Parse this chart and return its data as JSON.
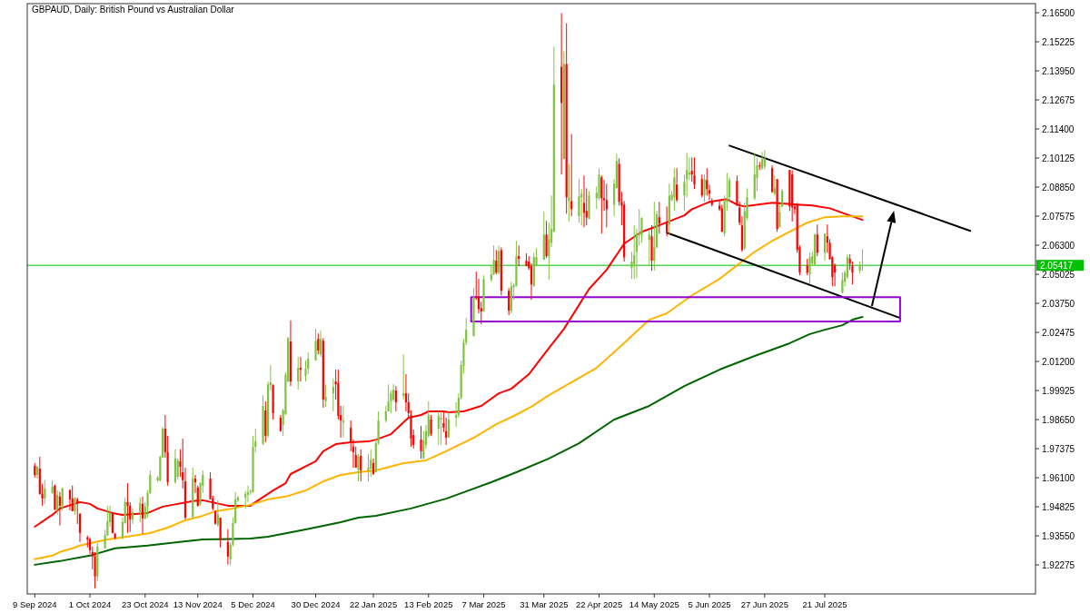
{
  "chart_data": {
    "type": "candlestick",
    "title": "GBPAUD, Daily: British Pound vs Australian Dollar",
    "x": [
      "2024-09-09",
      "2024-09-10",
      "2024-09-11",
      "2024-09-12",
      "2024-09-13",
      "2024-09-16",
      "2024-09-17",
      "2024-09-18",
      "2024-09-19",
      "2024-09-20",
      "2024-09-23",
      "2024-09-24",
      "2024-09-25",
      "2024-09-26",
      "2024-09-27",
      "2024-09-30",
      "2024-10-01",
      "2024-10-02",
      "2024-10-03",
      "2024-10-04",
      "2024-10-07",
      "2024-10-08",
      "2024-10-09",
      "2024-10-10",
      "2024-10-11",
      "2024-10-14",
      "2024-10-15",
      "2024-10-16",
      "2024-10-17",
      "2024-10-18",
      "2024-10-21",
      "2024-10-22",
      "2024-10-23",
      "2024-10-24",
      "2024-10-25",
      "2024-10-28",
      "2024-10-29",
      "2024-10-30",
      "2024-10-31",
      "2024-11-01",
      "2024-11-04",
      "2024-11-05",
      "2024-11-06",
      "2024-11-07",
      "2024-11-08",
      "2024-11-11",
      "2024-11-12",
      "2024-11-13",
      "2024-11-14",
      "2024-11-15",
      "2024-11-18",
      "2024-11-19",
      "2024-11-20",
      "2024-11-21",
      "2024-11-22",
      "2024-11-25",
      "2024-11-26",
      "2024-11-27",
      "2024-11-28",
      "2024-11-29",
      "2024-12-02",
      "2024-12-03",
      "2024-12-04",
      "2024-12-05",
      "2024-12-06",
      "2024-12-09",
      "2024-12-10",
      "2024-12-11",
      "2024-12-12",
      "2024-12-13",
      "2024-12-16",
      "2024-12-17",
      "2024-12-18",
      "2024-12-19",
      "2024-12-20",
      "2024-12-23",
      "2024-12-24",
      "2024-12-26",
      "2024-12-27",
      "2024-12-30",
      "2024-12-31",
      "2025-01-01",
      "2025-01-02",
      "2025-01-03",
      "2025-01-06",
      "2025-01-07",
      "2025-01-08",
      "2025-01-09",
      "2025-01-10",
      "2025-01-13",
      "2025-01-14",
      "2025-01-15",
      "2025-01-16",
      "2025-01-17",
      "2025-01-20",
      "2025-01-21",
      "2025-01-22",
      "2025-01-23",
      "2025-01-24",
      "2025-01-27",
      "2025-01-28",
      "2025-01-29",
      "2025-01-30",
      "2025-01-31",
      "2025-02-03",
      "2025-02-04",
      "2025-02-05",
      "2025-02-06",
      "2025-02-07",
      "2025-02-10",
      "2025-02-11",
      "2025-02-12",
      "2025-02-13",
      "2025-02-14",
      "2025-02-17",
      "2025-02-18",
      "2025-02-19",
      "2025-02-20",
      "2025-02-21",
      "2025-02-24",
      "2025-02-25",
      "2025-02-26",
      "2025-02-27",
      "2025-02-28",
      "2025-03-03",
      "2025-03-04",
      "2025-03-05",
      "2025-03-06",
      "2025-03-07",
      "2025-03-10",
      "2025-03-11",
      "2025-03-12",
      "2025-03-13",
      "2025-03-14",
      "2025-03-17",
      "2025-03-18",
      "2025-03-19",
      "2025-03-20",
      "2025-03-21",
      "2025-03-24",
      "2025-03-25",
      "2025-03-26",
      "2025-03-27",
      "2025-03-28",
      "2025-03-31",
      "2025-04-01",
      "2025-04-02",
      "2025-04-03",
      "2025-04-04",
      "2025-04-07",
      "2025-04-08",
      "2025-04-09",
      "2025-04-10",
      "2025-04-11",
      "2025-04-14",
      "2025-04-15",
      "2025-04-16",
      "2025-04-17",
      "2025-04-18",
      "2025-04-21",
      "2025-04-22",
      "2025-04-23",
      "2025-04-24",
      "2025-04-25",
      "2025-04-28",
      "2025-04-29",
      "2025-04-30",
      "2025-05-01",
      "2025-05-02",
      "2025-05-05",
      "2025-05-06",
      "2025-05-07",
      "2025-05-08",
      "2025-05-09",
      "2025-05-12",
      "2025-05-13",
      "2025-05-14",
      "2025-05-15",
      "2025-05-16",
      "2025-05-19",
      "2025-05-20",
      "2025-05-21",
      "2025-05-22",
      "2025-05-23",
      "2025-05-26",
      "2025-05-27",
      "2025-05-28",
      "2025-05-29",
      "2025-05-30",
      "2025-06-02",
      "2025-06-03",
      "2025-06-04",
      "2025-06-05",
      "2025-06-06",
      "2025-06-09",
      "2025-06-10",
      "2025-06-11",
      "2025-06-12",
      "2025-06-13",
      "2025-06-16",
      "2025-06-17",
      "2025-06-18",
      "2025-06-19",
      "2025-06-20",
      "2025-06-23",
      "2025-06-24",
      "2025-06-25",
      "2025-06-26",
      "2025-06-27",
      "2025-06-30",
      "2025-07-01",
      "2025-07-02",
      "2025-07-03",
      "2025-07-04",
      "2025-07-07",
      "2025-07-08",
      "2025-07-09",
      "2025-07-10",
      "2025-07-11",
      "2025-07-14",
      "2025-07-15",
      "2025-07-16",
      "2025-07-17",
      "2025-07-18",
      "2025-07-21",
      "2025-07-22",
      "2025-07-23",
      "2025-07-24",
      "2025-07-25",
      "2025-07-28",
      "2025-07-29",
      "2025-07-30",
      "2025-07-31",
      "2025-08-01",
      "2025-08-04",
      "2025-08-05"
    ],
    "ohlc": [
      [
        1.9662,
        1.9674,
        1.961,
        1.9622
      ],
      [
        1.9622,
        1.9662,
        1.9606,
        1.9658
      ],
      [
        1.965,
        1.9702,
        1.9535,
        1.9539
      ],
      [
        1.9539,
        1.9583,
        1.9487,
        1.9519
      ],
      [
        1.9519,
        1.9598,
        1.9495,
        1.9563
      ],
      [
        1.9543,
        1.9598,
        1.9539,
        1.9571
      ],
      [
        1.9575,
        1.958,
        1.9467,
        1.9471
      ],
      [
        1.9471,
        1.9555,
        1.9447,
        1.9535
      ],
      [
        1.9527,
        1.9547,
        1.94,
        1.9487
      ],
      [
        1.9487,
        1.9567,
        1.9467,
        1.9563
      ],
      [
        1.9555,
        1.9559,
        1.9467,
        1.9515
      ],
      [
        1.9519,
        1.9575,
        1.9463,
        1.9463
      ],
      [
        1.9463,
        1.9523,
        1.9447,
        1.9523
      ],
      [
        1.9515,
        1.9523,
        1.9407,
        1.9495
      ],
      [
        1.9451,
        1.9455,
        1.9328,
        1.9368
      ],
      [
        1.9348,
        1.9356,
        1.9304,
        1.934
      ],
      [
        1.934,
        1.9348,
        1.9276,
        1.9292
      ],
      [
        1.9284,
        1.9308,
        1.9208,
        1.9264
      ],
      [
        1.9264,
        1.9284,
        1.9125,
        1.9177
      ],
      [
        1.9177,
        1.9324,
        1.9157,
        1.9308
      ],
      [
        1.93,
        1.9382,
        1.93,
        1.9358
      ],
      [
        1.9356,
        1.9487,
        1.9356,
        1.9419
      ],
      [
        1.9415,
        1.9487,
        1.9395,
        1.9455
      ],
      [
        1.9455,
        1.9459,
        1.9364,
        1.9368
      ],
      [
        1.9364,
        1.9368,
        1.934,
        1.9346
      ],
      [
        1.9346,
        1.9435,
        1.934,
        1.9415
      ],
      [
        1.9411,
        1.9523,
        1.9407,
        1.9503
      ],
      [
        1.9503,
        1.9586,
        1.9368,
        1.9487
      ],
      [
        1.9487,
        1.9503,
        1.9372,
        1.9427
      ],
      [
        1.9427,
        1.9475,
        1.9407,
        1.9459
      ],
      [
        1.9459,
        1.9523,
        1.9415,
        1.9499
      ],
      [
        1.9495,
        1.9527,
        1.9364,
        1.9431
      ],
      [
        1.9431,
        1.9503,
        1.9427,
        1.9483
      ],
      [
        1.9483,
        1.9555,
        1.9435,
        1.9543
      ],
      [
        1.9543,
        1.9642,
        1.9539,
        1.9622
      ],
      [
        1.9598,
        1.9618,
        1.959,
        1.961
      ],
      [
        1.9598,
        1.9706,
        1.9594,
        1.9702
      ],
      [
        1.9698,
        1.9833,
        1.9698,
        1.9825
      ],
      [
        1.9825,
        1.9885,
        1.9698,
        1.9722
      ],
      [
        1.9722,
        1.9793,
        1.9575,
        1.9591
      ],
      [
        1.9591,
        1.9734,
        1.9583,
        1.9694
      ],
      [
        1.9614,
        1.9694,
        1.9602,
        1.9686
      ],
      [
        1.9682,
        1.9734,
        1.9614,
        1.9658
      ],
      [
        1.9634,
        1.9781,
        1.9563,
        1.9599
      ],
      [
        1.9594,
        1.9654,
        1.9427,
        1.9435
      ],
      [
        1.9439,
        1.9654,
        1.9431,
        1.9606
      ],
      [
        1.9606,
        1.9622,
        1.9543,
        1.959
      ],
      [
        1.9567,
        1.9575,
        1.9483,
        1.9487
      ],
      [
        1.9495,
        1.959,
        1.9487,
        1.9587
      ],
      [
        1.9575,
        1.9642,
        1.9543,
        1.9622
      ],
      [
        1.9606,
        1.9634,
        1.9515,
        1.9515
      ],
      [
        1.9519,
        1.9531,
        1.9467,
        1.9475
      ],
      [
        1.9463,
        1.9467,
        1.9404,
        1.9408
      ],
      [
        1.9404,
        1.9511,
        1.9395,
        1.9448
      ],
      [
        1.9435,
        1.9435,
        1.9304,
        1.9336
      ],
      [
        1.9328,
        1.9384,
        1.9229,
        1.9264
      ],
      [
        1.9252,
        1.9328,
        1.9225,
        1.9316
      ],
      [
        1.9316,
        1.9435,
        1.9308,
        1.9411
      ],
      [
        1.9411,
        1.9547,
        1.9407,
        1.9515
      ],
      [
        1.9511,
        1.9531,
        1.9503,
        1.9523
      ],
      [
        1.9523,
        1.9551,
        1.9475,
        1.9539
      ],
      [
        1.9535,
        1.9575,
        1.9503,
        1.9547
      ],
      [
        1.9547,
        1.9559,
        1.9535,
        1.9552
      ],
      [
        1.9547,
        1.9793,
        1.9543,
        1.9746
      ],
      [
        1.9746,
        1.9825,
        1.9722,
        1.977
      ],
      [
        1.9758,
        1.9972,
        1.9754,
        1.9925
      ],
      [
        1.9905,
        1.9945,
        1.9766,
        1.9794
      ],
      [
        1.9794,
        2.0032,
        1.9786,
        2.002
      ],
      [
        2.0016,
        2.0104,
        1.9992,
        2.0028
      ],
      [
        2.0016,
        2.002,
        1.9865,
        1.9893
      ],
      [
        1.9873,
        1.9885,
        1.9814,
        1.9814
      ],
      [
        1.9841,
        1.9913,
        1.9793,
        1.9905
      ],
      [
        1.9889,
        2.0072,
        1.9885,
        2.006
      ],
      [
        2.0032,
        2.0227,
        2.0028,
        2.0223
      ],
      [
        2.0207,
        2.03,
        2.0012,
        2.0032
      ],
      [
        2.0032,
        2.014,
        1.9996,
        2.0092
      ],
      [
        2.0092,
        2.014,
        2.0032,
        2.0084
      ],
      [
        2.0056,
        2.0124,
        2.0032,
        2.0088
      ],
      [
        2.0088,
        2.0159,
        2.0064,
        2.0132
      ],
      [
        2.0124,
        2.0263,
        2.0124,
        2.0211
      ],
      [
        2.0219,
        2.0243,
        2.0151,
        2.0168
      ],
      [
        2.0151,
        2.0255,
        2.014,
        2.0219
      ],
      [
        2.0211,
        2.0223,
        1.9917,
        1.9953
      ],
      [
        1.9945,
        2.002,
        1.9921,
        1.9965
      ],
      [
        1.998,
        2.0044,
        1.9901,
        2.0008
      ],
      [
        2.0032,
        2.0084,
        1.9953,
        2.002
      ],
      [
        2.0024,
        2.0084,
        1.9865,
        1.9881
      ],
      [
        1.9885,
        1.9925,
        1.9786,
        1.9861
      ],
      [
        1.9853,
        1.9925,
        1.9786,
        1.9861
      ],
      [
        1.9829,
        1.9861,
        1.9726,
        1.9766
      ],
      [
        1.9746,
        1.9778,
        1.9654,
        1.9722
      ],
      [
        1.971,
        1.9746,
        1.9654,
        1.9654
      ],
      [
        1.9646,
        1.9714,
        1.9594,
        1.9702
      ],
      [
        1.9706,
        1.9734,
        1.9594,
        1.9642
      ],
      [
        1.9642,
        1.9714,
        1.9594,
        1.9654
      ],
      [
        1.965,
        1.9734,
        1.9614,
        1.969
      ],
      [
        1.9674,
        1.9694,
        1.9622,
        1.9626
      ],
      [
        1.9634,
        1.9782,
        1.9634,
        1.9762
      ],
      [
        1.9762,
        1.9901,
        1.9754,
        1.9861
      ],
      [
        1.9861,
        1.9925,
        1.9853,
        1.9901
      ],
      [
        1.9901,
        2.002,
        1.9901,
        1.9945
      ],
      [
        1.9945,
        1.9992,
        1.9893,
        1.998
      ],
      [
        1.9953,
        2.002,
        1.9945,
        1.9996
      ],
      [
        1.9992,
        2.0012,
        1.9901,
        1.9941
      ],
      [
        1.9969,
        2.0151,
        1.9953,
        1.998
      ],
      [
        1.998,
        2.0064,
        1.9901,
        1.9941
      ],
      [
        1.9941,
        1.998,
        1.9873,
        1.9893
      ],
      [
        1.9885,
        1.9905,
        1.9746,
        1.9782
      ],
      [
        1.9797,
        1.9821,
        1.9738,
        1.9754
      ],
      [
        1.9778,
        1.9837,
        1.9694,
        1.9726
      ],
      [
        1.9694,
        1.9814,
        1.9694,
        1.9774
      ],
      [
        1.9754,
        1.9841,
        1.9738,
        1.9814
      ],
      [
        1.9793,
        1.9945,
        1.9786,
        1.9885
      ],
      [
        1.9865,
        1.9885,
        1.9793,
        1.9802
      ],
      [
        1.9825,
        1.9901,
        1.9754,
        1.9881
      ],
      [
        1.9865,
        1.9901,
        1.9754,
        1.9873
      ],
      [
        1.9849,
        1.9901,
        1.981,
        1.983
      ],
      [
        1.9814,
        1.9873,
        1.9754,
        1.9786
      ],
      [
        1.9786,
        1.9901,
        1.9786,
        1.9865
      ],
      [
        1.9873,
        1.9941,
        1.9833,
        1.9885
      ],
      [
        1.9885,
        1.998,
        1.9873,
        1.9961
      ],
      [
        1.9961,
        2.0124,
        1.9953,
        2.0104
      ],
      [
        2.01,
        2.0219,
        2.0068,
        2.0203
      ],
      [
        2.0203,
        2.0311,
        2.0191,
        2.0259
      ],
      [
        2.0231,
        2.0442,
        2.0231,
        2.0402
      ],
      [
        2.0406,
        2.0514,
        2.039,
        2.0398
      ],
      [
        2.0402,
        2.0482,
        2.0331,
        2.035
      ],
      [
        2.0354,
        2.0382,
        2.0283,
        2.0339
      ],
      [
        2.0339,
        2.0498,
        2.0339,
        2.0482
      ],
      [
        2.0478,
        2.0542,
        2.047,
        2.0502
      ],
      [
        2.0502,
        2.0629,
        2.0498,
        2.0566
      ],
      [
        2.0562,
        2.0609,
        2.0502,
        2.051
      ],
      [
        2.051,
        2.0629,
        2.0502,
        2.0605
      ],
      [
        2.0609,
        2.0621,
        2.041,
        2.043
      ],
      [
        2.043,
        2.0442,
        2.0323,
        2.0343
      ],
      [
        2.0343,
        2.047,
        2.0331,
        2.045
      ],
      [
        2.0446,
        2.0462,
        2.039,
        2.0454
      ],
      [
        2.045,
        2.0649,
        2.045,
        2.0582
      ],
      [
        2.0582,
        2.0629,
        2.0538,
        2.057
      ],
      [
        2.0562,
        2.0594,
        2.0538,
        2.0538
      ],
      [
        2.0558,
        2.0582,
        2.0522,
        2.053
      ],
      [
        2.0538,
        2.055,
        2.039,
        2.0458
      ],
      [
        2.045,
        2.0597,
        2.045,
        2.0578
      ],
      [
        2.0538,
        2.0617,
        2.0538,
        2.0578
      ],
      [
        2.0566,
        2.0776,
        2.0566,
        2.0677
      ],
      [
        2.0677,
        2.0737,
        2.0574,
        2.0582
      ],
      [
        2.0582,
        2.0729,
        2.0478,
        2.0657
      ],
      [
        2.0641,
        2.0848,
        2.0621,
        2.0701
      ],
      [
        2.0689,
        2.1501,
        2.0689,
        2.1334
      ],
      [
        2.1413,
        2.1648,
        2.094,
        2.1254
      ],
      [
        2.1008,
        2.1481,
        2.1008,
        2.1425
      ],
      [
        2.1425,
        2.1604,
        2.0768,
        2.084
      ],
      [
        2.0824,
        2.0987,
        2.0733,
        2.084
      ],
      [
        2.0824,
        2.1119,
        2.0757,
        2.0788
      ],
      [
        2.0757,
        2.092,
        2.0729,
        2.0844
      ],
      [
        2.084,
        2.0876,
        2.0717,
        2.0856
      ],
      [
        2.0816,
        2.0936,
        2.0709,
        2.0772
      ],
      [
        2.078,
        2.088,
        2.0717,
        2.0752
      ],
      [
        2.0745,
        2.0868,
        2.0745,
        2.0848
      ],
      [
        2.0836,
        2.0888,
        2.0788,
        2.086
      ],
      [
        2.0836,
        2.0968,
        2.0828,
        2.094
      ],
      [
        2.0928,
        2.0936,
        2.0681,
        2.0836
      ],
      [
        2.0836,
        2.0916,
        2.078,
        2.0828
      ],
      [
        2.0828,
        2.09,
        2.0709,
        2.0788
      ],
      [
        2.0808,
        2.092,
        2.0757,
        2.09
      ],
      [
        2.088,
        2.1031,
        2.088,
        2.1
      ],
      [
        2.0987,
        2.1011,
        2.0804,
        2.082
      ],
      [
        2.082,
        2.0864,
        2.0717,
        2.0804
      ],
      [
        2.0808,
        2.0824,
        2.0558,
        2.0577
      ],
      [
        2.053,
        2.0601,
        2.0482,
        2.0558
      ],
      [
        2.0546,
        2.0717,
        2.0482,
        2.0586
      ],
      [
        2.0601,
        2.0701,
        2.0486,
        2.0681
      ],
      [
        2.0673,
        2.0788,
        2.0629,
        2.0685
      ],
      [
        2.0677,
        2.0753,
        2.0641,
        2.0749
      ],
      [
        2.0653,
        2.0693,
        2.0538,
        2.0677
      ],
      [
        2.0669,
        2.0717,
        2.0518,
        2.0562
      ],
      [
        2.0562,
        2.082,
        2.0518,
        2.0621
      ],
      [
        2.0621,
        2.0781,
        2.0617,
        2.0765
      ],
      [
        2.0753,
        2.082,
        2.0681,
        2.0725
      ],
      [
        2.0729,
        2.08,
        2.0669,
        2.0689
      ],
      [
        2.0721,
        2.09,
        2.0677,
        2.0848
      ],
      [
        2.0828,
        2.0868,
        2.0824,
        2.0852
      ],
      [
        2.084,
        2.0968,
        2.0781,
        2.0928
      ],
      [
        2.0896,
        2.0968,
        2.082,
        2.0828
      ],
      [
        2.0848,
        2.094,
        2.0781,
        2.0908
      ],
      [
        2.092,
        2.1035,
        2.084,
        2.096
      ],
      [
        2.094,
        2.1015,
        2.0916,
        2.095
      ],
      [
        2.0956,
        2.1015,
        2.0908,
        2.094
      ],
      [
        2.0936,
        2.1015,
        2.0876,
        2.0896
      ],
      [
        2.092,
        2.094,
        2.084,
        2.0848
      ],
      [
        2.0848,
        2.094,
        2.082,
        2.092
      ],
      [
        2.0916,
        2.0968,
        2.0848,
        2.0876
      ],
      [
        2.0872,
        2.0896,
        2.0828,
        2.0856
      ],
      [
        2.0824,
        2.0836,
        2.08,
        2.0808
      ],
      [
        2.0804,
        2.0824,
        2.078,
        2.0788
      ],
      [
        2.0792,
        2.0808,
        2.0689,
        2.0689
      ],
      [
        2.0681,
        2.0848,
        2.0669,
        2.0828
      ],
      [
        2.082,
        2.0948,
        2.078,
        2.0832
      ],
      [
        2.084,
        2.0928,
        2.082,
        2.0916
      ],
      [
        2.0912,
        2.0936,
        2.0804,
        2.0804
      ],
      [
        2.0796,
        2.082,
        2.0717,
        2.0729
      ],
      [
        2.0717,
        2.0757,
        2.0601,
        2.0609
      ],
      [
        2.0617,
        2.0816,
        2.0609,
        2.078
      ],
      [
        2.0749,
        2.088,
        2.0741,
        2.084
      ],
      [
        2.0836,
        2.1035,
        2.0828,
        2.094
      ],
      [
        2.0924,
        2.1015,
        2.0868,
        2.098
      ],
      [
        2.098,
        2.0996,
        2.096,
        2.0976
      ],
      [
        2.0968,
        2.1039,
        2.096,
        2.1007
      ],
      [
        2.0976,
        2.1047,
        2.0964,
        2.1011
      ],
      [
        2.0968,
        2.098,
        2.086,
        2.0864
      ],
      [
        2.0856,
        2.0936,
        2.0848,
        2.088
      ],
      [
        2.092,
        2.092,
        2.0689,
        2.0701
      ],
      [
        2.0709,
        2.0808,
        2.0709,
        2.0776
      ],
      [
        2.08,
        2.0876,
        2.0796,
        2.0868
      ],
      [
        2.096,
        2.096,
        2.078,
        2.08
      ],
      [
        2.094,
        2.096,
        2.0733,
        2.0796
      ],
      [
        2.08,
        2.0808,
        2.0768,
        2.0788
      ],
      [
        2.0808,
        2.0816,
        2.0597,
        2.0609
      ],
      [
        2.0621,
        2.0629,
        2.0498,
        2.051
      ],
      [
        2.0542,
        2.057,
        2.0498,
        2.051
      ],
      [
        2.0502,
        2.0597,
        2.0458,
        2.0577
      ],
      [
        2.055,
        2.0601,
        2.0538,
        2.0582
      ],
      [
        2.0546,
        2.0681,
        2.0538,
        2.0677
      ],
      [
        2.0677,
        2.0721,
        2.0582,
        2.0597
      ],
      [
        2.0597,
        2.0681,
        2.0562,
        2.0681
      ],
      [
        2.0669,
        2.0721,
        2.0597,
        2.0641
      ],
      [
        2.0641,
        2.0657,
        2.0566,
        2.0569
      ],
      [
        2.0577,
        2.0582,
        2.045,
        2.049
      ],
      [
        2.0542,
        2.055,
        2.045,
        2.051
      ],
      [
        2.0422,
        2.051,
        2.0418,
        2.0478
      ],
      [
        2.047,
        2.0518,
        2.045,
        2.051
      ],
      [
        2.049,
        2.059,
        2.0482,
        2.0577
      ],
      [
        2.057,
        2.059,
        2.0522,
        2.0549
      ],
      [
        2.0538,
        2.0558,
        2.0458,
        2.051
      ],
      [
        2.0518,
        2.0558,
        2.0506,
        2.0538
      ],
      [
        2.0538,
        2.0613,
        2.0518,
        2.0542
      ]
    ],
    "colors": [
      "#ff0000",
      "#80c342",
      "#ff0000",
      "#ff0000",
      "#80c342",
      "#80c342",
      "#ff0000",
      "#80c342",
      "#ff0000",
      "#80c342",
      "#ff0000",
      "#ff0000",
      "#80c342",
      "#ff0000",
      "#ff0000",
      "#ff0000",
      "#ff0000",
      "#ff0000",
      "#ff0000",
      "#80c342",
      "#80c342",
      "#80c342",
      "#80c342",
      "#ff0000",
      "#ff0000",
      "#80c342",
      "#80c342",
      "#ff0000",
      "#ff0000",
      "#80c342",
      "#80c342",
      "#ff0000",
      "#80c342",
      "#80c342",
      "#80c342",
      "#80c342",
      "#80c342",
      "#80c342",
      "#ff0000",
      "#ff0000",
      "#80c342",
      "#80c342",
      "#ff0000",
      "#ff0000",
      "#ff0000",
      "#80c342",
      "#ff0000",
      "#ff0000",
      "#80c342",
      "#80c342",
      "#ff0000",
      "#ff0000",
      "#ff0000",
      "#80c342",
      "#ff0000",
      "#ff0000",
      "#80c342",
      "#80c342",
      "#80c342",
      "#80c342",
      "#80c342",
      "#80c342",
      "#80c342",
      "#80c342",
      "#80c342",
      "#80c342",
      "#ff0000",
      "#80c342",
      "#80c342",
      "#ff0000",
      "#ff0000",
      "#80c342",
      "#80c342",
      "#80c342",
      "#ff0000",
      "#80c342",
      "#ff0000",
      "#80c342",
      "#80c342",
      "#80c342",
      "#ff0000",
      "#80c342",
      "#ff0000",
      "#80c342",
      "#80c342",
      "#ff0000",
      "#ff0000",
      "#ff0000",
      "#80c342",
      "#ff0000",
      "#ff0000",
      "#ff0000",
      "#80c342",
      "#ff0000",
      "#80c342",
      "#80c342",
      "#ff0000",
      "#80c342",
      "#80c342",
      "#80c342",
      "#80c342",
      "#80c342",
      "#80c342",
      "#ff0000",
      "#80c342",
      "#ff0000",
      "#ff0000",
      "#ff0000",
      "#ff0000",
      "#ff0000",
      "#80c342",
      "#80c342",
      "#80c342",
      "#ff0000",
      "#80c342",
      "#80c342",
      "#ff0000",
      "#ff0000",
      "#80c342",
      "#80c342",
      "#80c342",
      "#80c342",
      "#80c342",
      "#80c342",
      "#80c342",
      "#ff0000",
      "#ff0000",
      "#ff0000",
      "#80c342",
      "#80c342",
      "#80c342",
      "#ff0000",
      "#80c342",
      "#ff0000",
      "#ff0000",
      "#80c342",
      "#80c342",
      "#80c342",
      "#ff0000",
      "#ff0000",
      "#ff0000",
      "#ff0000",
      "#80c342",
      "#80c342",
      "#80c342",
      "#ff0000",
      "#80c342",
      "#80c342",
      "#80c342",
      "#ff0000",
      "#80c342",
      "#ff0000",
      "#80c342",
      "#ff0000",
      "#80c342",
      "#80c342",
      "#ff0000",
      "#ff0000",
      "#80c342",
      "#80c342",
      "#80c342",
      "#ff0000",
      "#ff0000",
      "#ff0000",
      "#80c342",
      "#80c342",
      "#ff0000",
      "#ff0000",
      "#ff0000",
      "#80c342",
      "#80c342",
      "#80c342",
      "#80c342",
      "#80c342",
      "#80c342",
      "#ff0000",
      "#80c342",
      "#80c342",
      "#ff0000",
      "#ff0000",
      "#80c342",
      "#80c342",
      "#80c342",
      "#ff0000",
      "#80c342",
      "#80c342",
      "#80c342",
      "#ff0000",
      "#ff0000",
      "#ff0000",
      "#80c342",
      "#ff0000",
      "#ff0000",
      "#ff0000",
      "#ff0000",
      "#ff0000",
      "#80c342",
      "#80c342",
      "#80c342",
      "#ff0000",
      "#ff0000",
      "#ff0000",
      "#80c342",
      "#80c342",
      "#80c342",
      "#80c342",
      "#ff0000",
      "#80c342",
      "#80c342",
      "#ff0000",
      "#80c342",
      "#ff0000",
      "#80c342",
      "#80c342",
      "#ff0000",
      "#ff0000",
      "#ff0000",
      "#ff0000",
      "#ff0000",
      "#ff0000",
      "#80c342",
      "#80c342",
      "#80c342",
      "#ff0000",
      "#80c342",
      "#ff0000",
      "#ff0000",
      "#ff0000",
      "#ff0000",
      "#80c342",
      "#80c342",
      "#80c342",
      "#ff0000",
      "#ff0000",
      "#80c342",
      "#80c342"
    ],
    "series": [
      {
        "type": "line",
        "color": "#ff0000",
        "x": [
          "2024-09-09",
          "2024-09-16",
          "2024-09-19",
          "2024-09-27",
          "2024-10-01",
          "2024-10-04",
          "2024-10-10",
          "2024-10-14",
          "2024-10-24",
          "2024-10-30",
          "2024-11-05",
          "2024-11-11",
          "2024-11-15",
          "2024-11-25",
          "2024-12-04",
          "2024-12-06",
          "2024-12-13",
          "2024-12-18",
          "2024-12-20",
          "2024-12-30",
          "2025-01-02",
          "2025-01-07",
          "2025-01-13",
          "2025-01-20",
          "2025-01-23",
          "2025-01-29",
          "2025-02-05",
          "2025-02-10",
          "2025-02-13",
          "2025-02-19",
          "2025-02-21",
          "2025-02-27",
          "2025-03-06",
          "2025-03-13",
          "2025-03-18",
          "2025-03-25",
          "2025-04-01",
          "2025-04-08",
          "2025-04-18",
          "2025-04-25",
          "2025-05-02",
          "2025-05-09",
          "2025-05-15",
          "2025-05-26",
          "2025-05-29",
          "2025-06-05",
          "2025-06-12",
          "2025-06-16",
          "2025-06-19",
          "2025-06-30",
          "2025-07-10",
          "2025-07-16",
          "2025-07-23",
          "2025-07-29",
          "2025-08-05"
        ],
        "values": [
          1.9395,
          1.9447,
          1.9475,
          1.9503,
          1.9495,
          1.9475,
          1.9455,
          1.9447,
          1.9455,
          1.9483,
          1.9495,
          1.9507,
          1.9511,
          1.9487,
          1.9487,
          1.9503,
          1.9554,
          1.9586,
          1.9626,
          1.9682,
          1.9726,
          1.9757,
          1.9765,
          1.9769,
          1.9777,
          1.9801,
          1.9873,
          1.9885,
          1.9901,
          1.9901,
          1.9897,
          1.9901,
          1.9925,
          1.998,
          2.0,
          2.0064,
          2.0164,
          2.0263,
          2.0438,
          2.0522,
          2.0637,
          2.0689,
          2.0713,
          2.0761,
          2.0788,
          2.082,
          2.0832,
          2.0808,
          2.08,
          2.0816,
          2.0808,
          2.0804,
          2.0792,
          2.0768,
          2.0741
        ]
      },
      {
        "type": "line",
        "color": "#ffb400",
        "x": [
          "2024-09-09",
          "2024-09-16",
          "2024-09-19",
          "2024-09-24",
          "2024-09-27",
          "2024-10-03",
          "2024-10-08",
          "2024-10-11",
          "2024-10-18",
          "2024-10-25",
          "2024-11-01",
          "2024-11-08",
          "2024-11-15",
          "2024-11-20",
          "2024-11-27",
          "2024-12-04",
          "2024-12-11",
          "2024-12-18",
          "2024-12-26",
          "2025-01-02",
          "2025-01-09",
          "2025-01-16",
          "2025-01-23",
          "2025-02-03",
          "2025-02-12",
          "2025-02-20",
          "2025-03-03",
          "2025-03-12",
          "2025-03-19",
          "2025-03-26",
          "2025-04-02",
          "2025-04-21",
          "2025-05-01",
          "2025-05-12",
          "2025-05-19",
          "2025-05-29",
          "2025-06-09",
          "2025-06-16",
          "2025-06-23",
          "2025-06-30",
          "2025-07-07",
          "2025-07-14",
          "2025-07-21",
          "2025-07-28",
          "2025-08-05"
        ],
        "values": [
          1.9252,
          1.9268,
          1.9284,
          1.93,
          1.9312,
          1.9327,
          1.9339,
          1.9343,
          1.9355,
          1.9367,
          1.9391,
          1.9423,
          1.9443,
          1.9463,
          1.9475,
          1.9491,
          1.9515,
          1.9527,
          1.9554,
          1.9594,
          1.9622,
          1.9634,
          1.9642,
          1.9674,
          1.9686,
          1.9726,
          1.9785,
          1.9845,
          1.9881,
          1.9921,
          1.9972,
          2.0092,
          2.0191,
          2.0303,
          2.0331,
          2.041,
          2.0482,
          2.0542,
          2.0601,
          2.0649,
          2.0689,
          2.0729,
          2.0753,
          2.0757,
          2.0757
        ]
      },
      {
        "type": "line",
        "color": "#006400",
        "x": [
          "2024-09-09",
          "2024-09-19",
          "2024-10-01",
          "2024-10-11",
          "2024-10-24",
          "2024-11-05",
          "2024-11-15",
          "2024-12-04",
          "2024-12-11",
          "2024-12-26",
          "2025-01-02",
          "2025-01-09",
          "2025-01-16",
          "2025-01-23",
          "2025-02-06",
          "2025-02-20",
          "2025-03-10",
          "2025-03-20",
          "2025-04-02",
          "2025-04-14",
          "2025-04-28",
          "2025-05-12",
          "2025-05-26",
          "2025-06-09",
          "2025-06-23",
          "2025-07-07",
          "2025-07-15",
          "2025-07-21",
          "2025-07-28",
          "2025-08-01",
          "2025-08-05"
        ],
        "values": [
          1.9228,
          1.9244,
          1.9268,
          1.93,
          1.9312,
          1.9327,
          1.9339,
          1.9343,
          1.9351,
          1.9383,
          1.9399,
          1.9415,
          1.9435,
          1.9443,
          1.9475,
          1.9518,
          1.959,
          1.9634,
          1.9694,
          1.9761,
          1.9865,
          1.9925,
          2.0012,
          2.0084,
          2.0144,
          2.02,
          2.024,
          2.0259,
          2.0279,
          2.0303,
          2.0315
        ]
      },
      {
        "type": "line",
        "color": "#000000",
        "x": [
          "2025-06-13",
          "2025-09-17"
        ],
        "values": [
          2.1067,
          2.0693
        ]
      },
      {
        "type": "line",
        "color": "#000000",
        "x": [
          "2025-05-19",
          "2025-08-20"
        ],
        "values": [
          2.0685,
          2.0311
        ]
      },
      {
        "type": "line",
        "color": "#9400d3",
        "x": [
          "2025-03-02",
          "2025-08-20"
        ],
        "values": [
          2.0402,
          2.0402
        ]
      },
      {
        "type": "line",
        "color": "#9400d3",
        "x": [
          "2025-03-02",
          "2025-08-20"
        ],
        "values": [
          2.0295,
          2.0295
        ]
      }
    ],
    "ref_lines": [
      {
        "axis": "y",
        "value": 2.05417,
        "label": "2.05417",
        "color": "#00c000"
      }
    ],
    "xlim": [
      "2024-09-06",
      "2025-10-13"
    ],
    "xticks": [
      {
        "value": "2024-09-09",
        "label": "9 Sep 2024"
      },
      {
        "value": "2024-10-01",
        "label": "1 Oct 2024"
      },
      {
        "value": "2024-10-23",
        "label": "23 Oct 2024"
      },
      {
        "value": "2024-11-13",
        "label": "13 Nov 2024"
      },
      {
        "value": "2024-12-05",
        "label": "5 Dec 2024"
      },
      {
        "value": "2024-12-30",
        "label": "30 Dec 2024"
      },
      {
        "value": "2025-01-22",
        "label": "22 Jan 2025"
      },
      {
        "value": "2025-02-13",
        "label": "13 Feb 2025"
      },
      {
        "value": "2025-03-07",
        "label": "7 Mar 2025"
      },
      {
        "value": "2025-03-31",
        "label": "31 Mar 2025"
      },
      {
        "value": "2025-04-22",
        "label": "22 Apr 2025"
      },
      {
        "value": "2025-05-14",
        "label": "14 May 2025"
      },
      {
        "value": "2025-06-05",
        "label": "5 Jun 2025"
      },
      {
        "value": "2025-06-27",
        "label": "27 Jun 2025"
      },
      {
        "value": "2025-07-21",
        "label": "21 Jul 2025"
      }
    ],
    "ylim": [
      1.91,
      2.169
    ],
    "yticks": [
      {
        "value": 1.92275,
        "label": "1.92275"
      },
      {
        "value": 1.9355,
        "label": "1.93550"
      },
      {
        "value": 1.94825,
        "label": "1.94825"
      },
      {
        "value": 1.961,
        "label": "1.96100"
      },
      {
        "value": 1.97375,
        "label": "1.97375"
      },
      {
        "value": 1.9865,
        "label": "1.98650"
      },
      {
        "value": 1.99925,
        "label": "1.99925"
      },
      {
        "value": 2.012,
        "label": "2.01200"
      },
      {
        "value": 2.02475,
        "label": "2.02475"
      },
      {
        "value": 2.0375,
        "label": "2.03750"
      },
      {
        "value": 2.05025,
        "label": "2.05025"
      },
      {
        "value": 2.063,
        "label": "2.06300"
      },
      {
        "value": 2.07575,
        "label": "2.07575"
      },
      {
        "value": 2.0885,
        "label": "2.08850"
      },
      {
        "value": 2.10125,
        "label": "2.10125"
      },
      {
        "value": 2.114,
        "label": "2.11400"
      },
      {
        "value": 2.12675,
        "label": "2.12675"
      },
      {
        "value": 2.1395,
        "label": "2.13950"
      },
      {
        "value": 2.15225,
        "label": "2.15225"
      },
      {
        "value": 2.165,
        "label": "2.16500"
      }
    ]
  }
}
